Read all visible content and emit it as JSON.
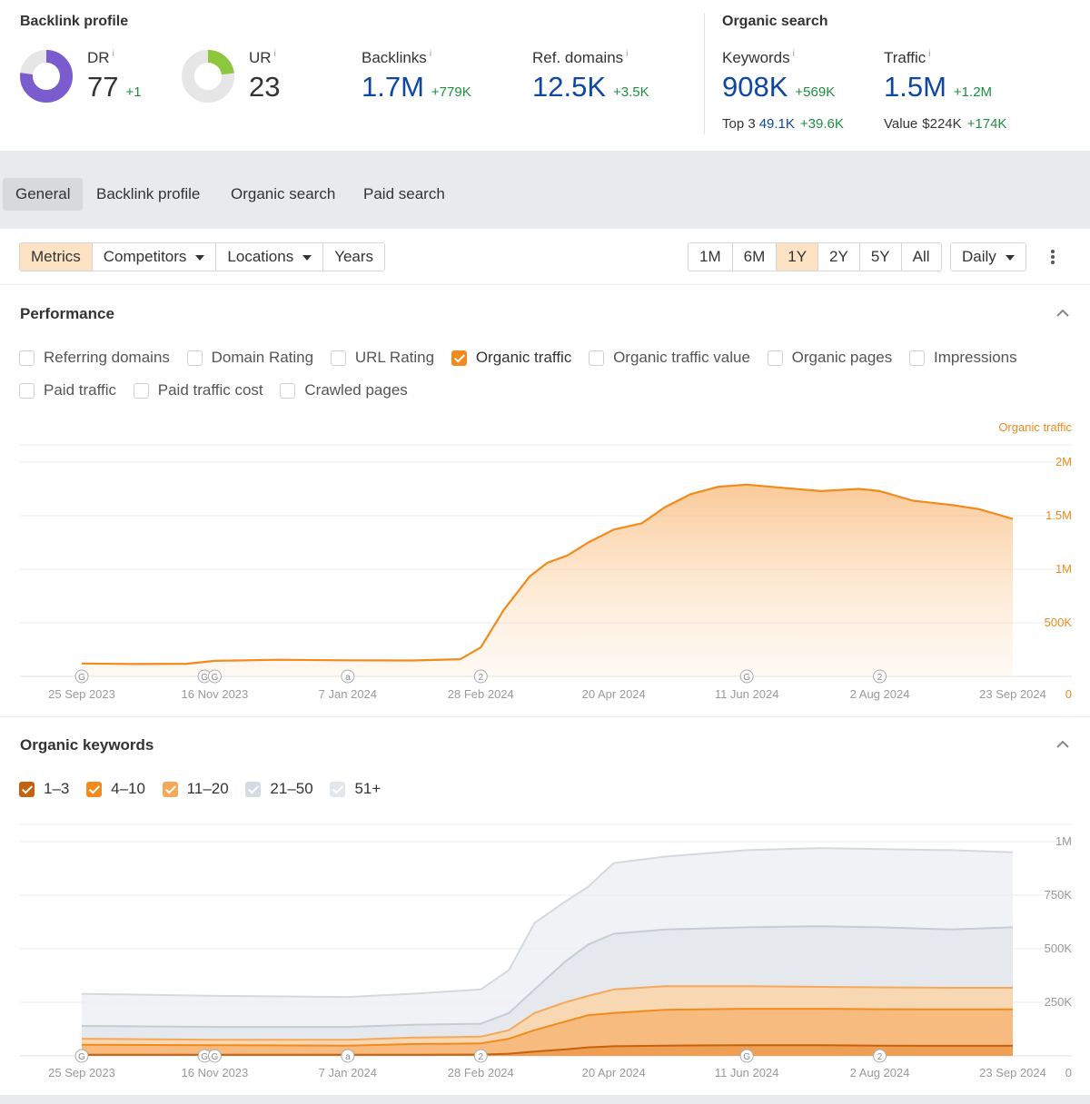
{
  "backlink_profile": {
    "title": "Backlink profile",
    "info_mark": "i",
    "dr": {
      "label": "DR",
      "value": "77",
      "delta": "+1",
      "ring_fill": 0.77,
      "color": "#7b5ccf"
    },
    "ur": {
      "label": "UR",
      "value": "23",
      "ring_fill": 0.23,
      "color": "#8dc63f"
    },
    "backlinks": {
      "label": "Backlinks",
      "value": "1.7M",
      "delta": "+779K"
    },
    "ref_domains": {
      "label": "Ref. domains",
      "value": "12.5K",
      "delta": "+3.5K"
    }
  },
  "organic_search": {
    "title": "Organic search",
    "keywords": {
      "label": "Keywords",
      "value": "908K",
      "delta": "+569K"
    },
    "top3": {
      "label": "Top 3",
      "value": "49.1K",
      "delta": "+39.6K"
    },
    "traffic": {
      "label": "Traffic",
      "value": "1.5M",
      "delta": "+1.2M"
    },
    "value": {
      "label": "Value",
      "value": "$224K",
      "delta": "+174K"
    }
  },
  "tabs": [
    "General",
    "Backlink profile",
    "Organic search",
    "Paid search"
  ],
  "toolbar": {
    "left_buttons": [
      "Metrics",
      "Competitors",
      "Locations",
      "Years"
    ],
    "ranges": [
      "1M",
      "6M",
      "1Y",
      "2Y",
      "5Y",
      "All"
    ],
    "selected_range": "1Y",
    "interval": "Daily"
  },
  "performance": {
    "title": "Performance",
    "checkboxes_row1": [
      {
        "label": "Referring domains",
        "checked": false
      },
      {
        "label": "Domain Rating",
        "checked": false
      },
      {
        "label": "URL Rating",
        "checked": false
      },
      {
        "label": "Organic traffic",
        "checked": true
      },
      {
        "label": "Organic traffic value",
        "checked": false
      },
      {
        "label": "Organic pages",
        "checked": false
      },
      {
        "label": "Impressions",
        "checked": false
      }
    ],
    "checkboxes_row2": [
      {
        "label": "Paid traffic",
        "checked": false
      },
      {
        "label": "Paid traffic cost",
        "checked": false
      },
      {
        "label": "Crawled pages",
        "checked": false
      }
    ]
  },
  "organic_keywords": {
    "title": "Organic keywords",
    "checkboxes": [
      {
        "label": "1–3",
        "checked": true,
        "color": "#c4620f"
      },
      {
        "label": "4–10",
        "checked": true,
        "color": "#f28a1c"
      },
      {
        "label": "11–20",
        "checked": true,
        "color": "#f5a85a"
      },
      {
        "label": "21–50",
        "checked": true,
        "color": "#dfe3e8"
      },
      {
        "label": "51+",
        "checked": true,
        "color": "#e7eaee"
      }
    ]
  },
  "chart_data": [
    {
      "type": "area",
      "series_label": "Organic traffic",
      "color": "#f28a1c",
      "x_labels": [
        "25 Sep 2023",
        "16 Nov 2023",
        "7 Jan 2024",
        "28 Feb 2024",
        "20 Apr 2024",
        "11 Jun 2024",
        "2 Aug 2024",
        "23 Sep 2024"
      ],
      "y_ticks": [
        "2M",
        "1.5M",
        "1M",
        "500K",
        "0"
      ],
      "ylim": [
        0,
        2000000
      ],
      "x": [
        "2023-09-25",
        "2023-10-15",
        "2023-11-05",
        "2023-11-16",
        "2023-12-10",
        "2024-01-07",
        "2024-02-01",
        "2024-02-20",
        "2024-02-28",
        "2024-03-08",
        "2024-03-18",
        "2024-03-25",
        "2024-04-02",
        "2024-04-10",
        "2024-04-20",
        "2024-05-01",
        "2024-05-10",
        "2024-05-20",
        "2024-05-31",
        "2024-06-11",
        "2024-06-25",
        "2024-07-10",
        "2024-07-25",
        "2024-08-02",
        "2024-08-15",
        "2024-08-30",
        "2024-09-10",
        "2024-09-23"
      ],
      "values": [
        120000,
        115000,
        118000,
        145000,
        155000,
        150000,
        148000,
        160000,
        270000,
        620000,
        930000,
        1060000,
        1130000,
        1250000,
        1370000,
        1430000,
        1580000,
        1700000,
        1770000,
        1790000,
        1760000,
        1730000,
        1750000,
        1730000,
        1640000,
        1600000,
        1560000,
        1470000
      ],
      "annotations": [
        {
          "x": "2023-09-25",
          "mark": "G"
        },
        {
          "x": "2023-11-12",
          "mark": "G"
        },
        {
          "x": "2023-11-16",
          "mark": "G"
        },
        {
          "x": "2024-01-07",
          "mark": "a"
        },
        {
          "x": "2024-02-28",
          "mark": "2"
        },
        {
          "x": "2024-06-11",
          "mark": "G"
        },
        {
          "x": "2024-08-02",
          "mark": "2"
        }
      ]
    },
    {
      "type": "area",
      "stacked": true,
      "x_labels": [
        "25 Sep 2023",
        "16 Nov 2023",
        "7 Jan 2024",
        "28 Feb 2024",
        "20 Apr 2024",
        "11 Jun 2024",
        "2 Aug 2024",
        "23 Sep 2024"
      ],
      "y_ticks": [
        "1M",
        "750K",
        "500K",
        "250K"
      ],
      "ylim": [
        0,
        1000000
      ],
      "x": [
        "2023-09-25",
        "2023-11-16",
        "2024-01-07",
        "2024-02-01",
        "2024-02-28",
        "2024-03-10",
        "2024-03-20",
        "2024-04-01",
        "2024-04-10",
        "2024-04-20",
        "2024-05-10",
        "2024-06-11",
        "2024-07-10",
        "2024-08-02",
        "2024-08-30",
        "2024-09-23"
      ],
      "series": [
        {
          "name": "1–3",
          "color": "#c4620f",
          "values": [
            5000,
            5000,
            5000,
            5000,
            6000,
            10000,
            20000,
            30000,
            40000,
            45000,
            48000,
            50000,
            50000,
            48000,
            47000,
            47000
          ]
        },
        {
          "name": "4–10",
          "color": "#f28a1c",
          "values": [
            52000,
            50000,
            48000,
            55000,
            58000,
            80000,
            120000,
            160000,
            190000,
            200000,
            215000,
            220000,
            220000,
            218000,
            217000,
            217000
          ]
        },
        {
          "name": "11–20",
          "color": "#f5a85a",
          "values": [
            80000,
            75000,
            75000,
            85000,
            90000,
            120000,
            200000,
            250000,
            280000,
            310000,
            325000,
            325000,
            322000,
            320000,
            318000,
            318000
          ]
        },
        {
          "name": "21–50",
          "color": "#dfe3e8",
          "values": [
            140000,
            135000,
            135000,
            145000,
            150000,
            200000,
            310000,
            440000,
            520000,
            570000,
            590000,
            600000,
            605000,
            600000,
            590000,
            600000
          ]
        },
        {
          "name": "51+",
          "color": "#e7eaee",
          "values": [
            290000,
            280000,
            275000,
            290000,
            310000,
            400000,
            620000,
            720000,
            790000,
            900000,
            930000,
            960000,
            970000,
            965000,
            960000,
            950000
          ]
        }
      ],
      "annotations": [
        {
          "x": "2023-09-25",
          "mark": "G"
        },
        {
          "x": "2023-11-12",
          "mark": "G"
        },
        {
          "x": "2023-11-16",
          "mark": "G"
        },
        {
          "x": "2024-01-07",
          "mark": "a"
        },
        {
          "x": "2024-02-28",
          "mark": "2"
        },
        {
          "x": "2024-06-11",
          "mark": "G"
        },
        {
          "x": "2024-08-02",
          "mark": "2"
        }
      ]
    }
  ]
}
